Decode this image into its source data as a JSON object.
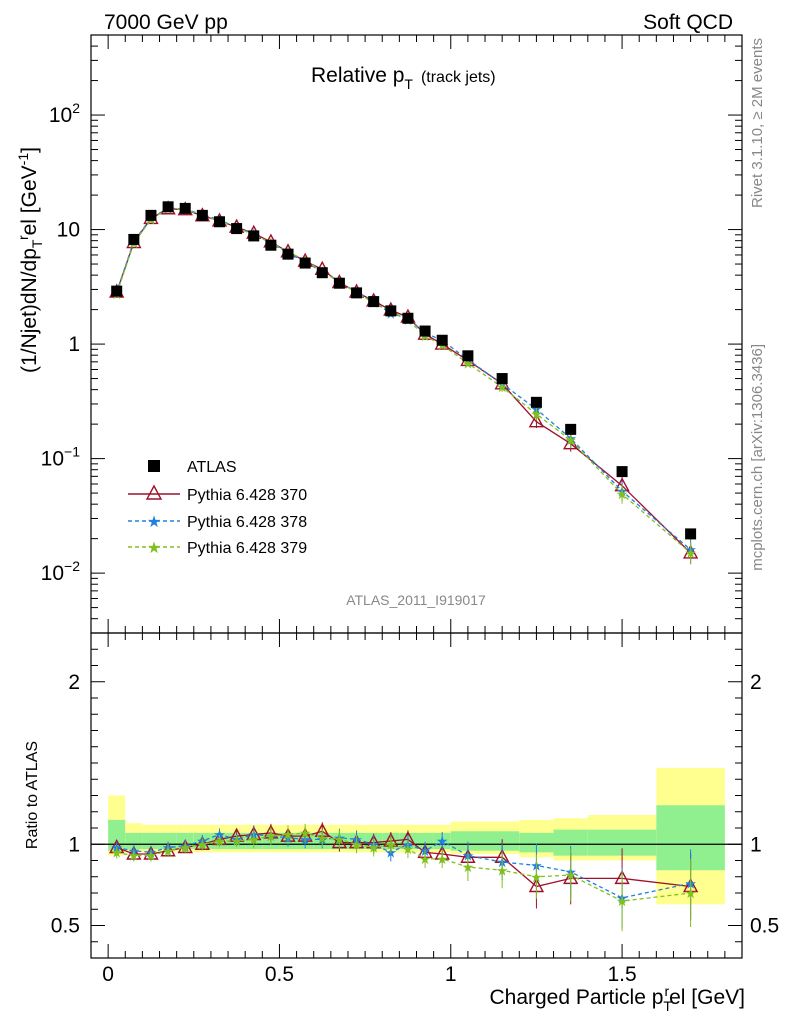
{
  "header": {
    "left": "7000 GeV pp",
    "right": "Soft QCD"
  },
  "side_text": {
    "rivet": "Rivet 3.1.10, ≥ 2M events",
    "mcplots": "mcplots.cern.ch [arXiv:1306.3436]"
  },
  "main_title": "Relative p",
  "main_title_sub": "T",
  "main_title_small": "(track jets)",
  "analysis_id": "ATLAS_2011_I919017",
  "colors": {
    "atlas": "#000000",
    "p370": "#a0102a",
    "p378": "#2080e0",
    "p379": "#80c020",
    "band_green": "#90f090",
    "band_yellow": "#ffff90"
  },
  "chart_data": [
    {
      "type": "scatter",
      "title": "Relative pT (track jets)",
      "ylabel": "(1/Njet)dN/dp_T^rel [GeV^-1]",
      "xlabel": "Charged Particle p_T^rel [GeV]",
      "log_y": true,
      "xlim": [
        -0.05,
        1.85
      ],
      "ylim": [
        0.003,
        500
      ],
      "y_ticks": [
        {
          "v": 0.01,
          "base": "10",
          "exp": "−2"
        },
        {
          "v": 0.1,
          "base": "10",
          "exp": "−1"
        },
        {
          "v": 1,
          "base": "1",
          "exp": ""
        },
        {
          "v": 10,
          "base": "10",
          "exp": ""
        },
        {
          "v": 100,
          "base": "10",
          "exp": "2"
        }
      ],
      "legend_position": "middle-left",
      "x": [
        0.025,
        0.075,
        0.125,
        0.175,
        0.225,
        0.275,
        0.325,
        0.375,
        0.425,
        0.475,
        0.525,
        0.575,
        0.625,
        0.675,
        0.725,
        0.775,
        0.825,
        0.875,
        0.925,
        0.975,
        1.05,
        1.15,
        1.25,
        1.35,
        1.5,
        1.7
      ],
      "series": [
        {
          "name": "ATLAS",
          "marker": "square",
          "values": [
            2.9,
            8.2,
            13.3,
            15.8,
            15.3,
            13.3,
            11.7,
            10.2,
            8.8,
            7.3,
            6.1,
            5.1,
            4.2,
            3.4,
            2.8,
            2.35,
            1.95,
            1.68,
            1.3,
            1.08,
            0.79,
            0.5,
            0.31,
            0.18,
            0.077,
            0.022
          ]
        },
        {
          "name": "Pythia 6.428 370",
          "marker": "triangle-open",
          "line": "solid",
          "values": [
            2.85,
            7.7,
            12.5,
            15.2,
            14.9,
            13.2,
            11.9,
            10.5,
            9.3,
            7.8,
            6.4,
            5.3,
            4.5,
            3.45,
            2.85,
            2.38,
            1.98,
            1.72,
            1.22,
            1.0,
            0.72,
            0.45,
            0.21,
            0.135,
            0.058,
            0.015
          ]
        },
        {
          "name": "Pythia 6.428 378",
          "marker": "star",
          "line": "dashed",
          "values": [
            2.85,
            7.9,
            12.6,
            15.4,
            15.1,
            13.5,
            12.2,
            10.4,
            9.2,
            7.6,
            6.3,
            5.2,
            4.3,
            3.5,
            2.85,
            2.35,
            1.85,
            1.68,
            1.25,
            1.08,
            0.73,
            0.45,
            0.27,
            0.15,
            0.052,
            0.016
          ]
        },
        {
          "name": "Pythia 6.428 379",
          "marker": "star",
          "line": "dashed",
          "values": [
            2.75,
            7.6,
            12.3,
            15.2,
            15.0,
            13.3,
            11.9,
            10.4,
            9.0,
            7.7,
            6.4,
            5.4,
            4.3,
            3.5,
            2.8,
            2.3,
            1.95,
            1.62,
            1.18,
            0.98,
            0.68,
            0.42,
            0.245,
            0.145,
            0.049,
            0.015
          ]
        }
      ]
    },
    {
      "type": "line",
      "ylabel": "Ratio to ATLAS",
      "xlabel": "Charged Particle p_T^rel [GeV]",
      "xlim": [
        -0.05,
        1.85
      ],
      "ylim": [
        0.3,
        2.3
      ],
      "y_ticks": [
        0.5,
        1,
        2
      ],
      "x_ticks": [
        0,
        0.5,
        1,
        1.5
      ],
      "x_tick_labels": [
        "0",
        "0.5",
        "1",
        "1.5"
      ],
      "x": [
        0.025,
        0.075,
        0.125,
        0.175,
        0.225,
        0.275,
        0.325,
        0.375,
        0.425,
        0.475,
        0.525,
        0.575,
        0.625,
        0.675,
        0.725,
        0.775,
        0.825,
        0.875,
        0.925,
        0.975,
        1.05,
        1.15,
        1.25,
        1.35,
        1.5,
        1.7
      ],
      "series": [
        {
          "name": "Pythia 6.428 370",
          "values": [
            0.98,
            0.94,
            0.94,
            0.96,
            0.98,
            1.0,
            1.03,
            1.05,
            1.06,
            1.07,
            1.05,
            1.05,
            1.08,
            1.01,
            1.01,
            1.01,
            1.02,
            1.03,
            0.95,
            0.94,
            0.92,
            0.92,
            0.74,
            0.79,
            0.79,
            0.74
          ]
        },
        {
          "name": "Pythia 6.428 378",
          "values": [
            0.98,
            0.96,
            0.95,
            0.98,
            0.99,
            1.02,
            1.06,
            1.03,
            1.06,
            1.05,
            1.04,
            1.03,
            1.03,
            1.04,
            1.03,
            1.0,
            0.95,
            1.0,
            0.96,
            1.02,
            0.93,
            0.89,
            0.87,
            0.83,
            0.67,
            0.76
          ]
        },
        {
          "name": "Pythia 6.428 379",
          "values": [
            0.95,
            0.93,
            0.93,
            0.96,
            0.98,
            1.0,
            1.02,
            1.02,
            1.03,
            1.05,
            1.06,
            1.07,
            1.04,
            1.03,
            1.0,
            0.98,
            1.0,
            0.97,
            0.91,
            0.91,
            0.86,
            0.84,
            0.8,
            0.81,
            0.65,
            0.7
          ]
        }
      ],
      "bands": {
        "edges": [
          0.0,
          0.05,
          0.1,
          0.15,
          0.2,
          0.25,
          0.3,
          0.35,
          0.4,
          0.45,
          0.5,
          0.55,
          0.6,
          0.65,
          0.7,
          0.75,
          0.8,
          0.85,
          0.9,
          0.95,
          1.0,
          1.1,
          1.2,
          1.3,
          1.4,
          1.6,
          1.8
        ],
        "green_lo": [
          0.96,
          0.97,
          0.97,
          0.97,
          0.97,
          0.97,
          0.97,
          0.97,
          0.97,
          0.97,
          0.97,
          0.97,
          0.97,
          0.97,
          0.97,
          0.97,
          0.97,
          0.97,
          0.97,
          0.97,
          0.96,
          0.96,
          0.95,
          0.93,
          0.93,
          0.84
        ],
        "green_hi": [
          1.15,
          1.07,
          1.07,
          1.07,
          1.07,
          1.07,
          1.07,
          1.07,
          1.07,
          1.07,
          1.07,
          1.07,
          1.07,
          1.07,
          1.07,
          1.07,
          1.07,
          1.07,
          1.07,
          1.07,
          1.08,
          1.08,
          1.07,
          1.09,
          1.09,
          1.24
        ],
        "yellow_lo": [
          0.93,
          0.95,
          0.95,
          0.95,
          0.95,
          0.95,
          0.95,
          0.95,
          0.95,
          0.95,
          0.95,
          0.95,
          0.95,
          0.95,
          0.95,
          0.95,
          0.95,
          0.95,
          0.95,
          0.95,
          0.94,
          0.94,
          0.92,
          0.9,
          0.9,
          0.63
        ],
        "yellow_hi": [
          1.3,
          1.13,
          1.12,
          1.12,
          1.12,
          1.12,
          1.12,
          1.12,
          1.12,
          1.12,
          1.12,
          1.12,
          1.12,
          1.12,
          1.12,
          1.12,
          1.12,
          1.12,
          1.12,
          1.12,
          1.14,
          1.14,
          1.15,
          1.16,
          1.18,
          1.47
        ]
      }
    }
  ]
}
